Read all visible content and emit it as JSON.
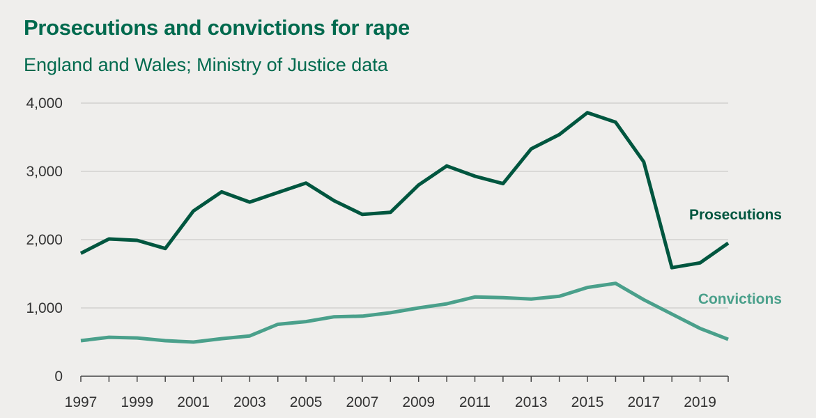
{
  "chart_data": {
    "type": "line",
    "title": "Prosecutions and convictions for rape",
    "subtitle": "England and Wales; Ministry of Justice data",
    "xlabel": "",
    "ylabel": "",
    "ylim": [
      0,
      4000
    ],
    "xlim": [
      1997,
      2020
    ],
    "y_ticks": [
      "0",
      "1,000",
      "2,000",
      "3,000",
      "4,000"
    ],
    "x_ticks": [
      "1997",
      "1999",
      "2001",
      "2003",
      "2005",
      "2007",
      "2009",
      "2011",
      "2013",
      "2015",
      "2017",
      "2019"
    ],
    "grid": "horizontal",
    "x": [
      1997,
      1998,
      1999,
      2000,
      2001,
      2002,
      2003,
      2004,
      2005,
      2006,
      2007,
      2008,
      2009,
      2010,
      2011,
      2012,
      2013,
      2014,
      2015,
      2016,
      2017,
      2018,
      2019,
      2020
    ],
    "series": [
      {
        "name": "Prosecutions",
        "color": "#00563f",
        "values": [
          1800,
          2010,
          1990,
          1870,
          2420,
          2700,
          2550,
          2690,
          2830,
          2570,
          2370,
          2400,
          2800,
          3080,
          2930,
          2820,
          3330,
          3540,
          3860,
          3720,
          3140,
          1590,
          1660,
          1950
        ]
      },
      {
        "name": "Convictions",
        "color": "#4aa08b",
        "values": [
          520,
          570,
          560,
          520,
          500,
          550,
          590,
          760,
          800,
          870,
          880,
          930,
          1000,
          1060,
          1160,
          1150,
          1130,
          1170,
          1300,
          1360,
          1120,
          910,
          700,
          540
        ]
      }
    ]
  }
}
